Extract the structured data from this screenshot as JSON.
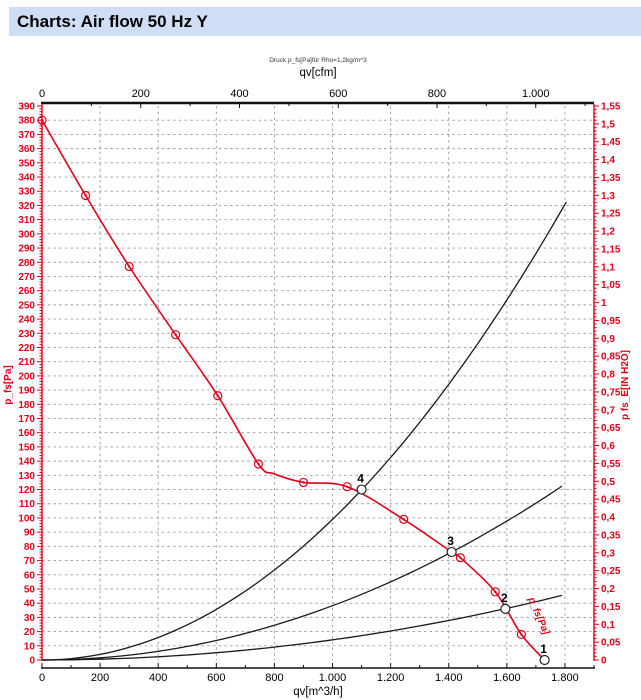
{
  "header": {
    "title": "Charts: Air flow 50 Hz Y"
  },
  "colors": {
    "title_bg": "#cfdef6",
    "accent_red": "#e1001a",
    "curve_black": "#1a1a1a",
    "grid_gray": "#9a9a9a",
    "axis_black": "#111111"
  },
  "chart_data": {
    "type": "line",
    "subtitle": "Druck p_fs[Pa]für Rho=1,2kg/m^3",
    "axes": {
      "top": {
        "label": "qv[cfm]",
        "max": 1118,
        "major_ticks": [
          0,
          200,
          400,
          600,
          800,
          1000
        ],
        "tick_labels": [
          "0",
          "200",
          "400",
          "600",
          "800",
          "1.000"
        ],
        "minor_step": 100
      },
      "bottom": {
        "label": "qv[m^3/h]",
        "max": 1900,
        "major_ticks": [
          0,
          200,
          400,
          600,
          800,
          1000,
          1200,
          1400,
          1600,
          1800
        ],
        "tick_labels": [
          "0",
          "200",
          "400",
          "600",
          "800",
          "1.000",
          "1.200",
          "1.400",
          "1.600",
          "1.800"
        ],
        "minor_step": 100
      },
      "left": {
        "label": "p_fs[Pa]",
        "max": 390,
        "major_step": 10,
        "minor_step": 2,
        "tick_labels": [
          "0",
          "10",
          "20",
          "30",
          "40",
          "50",
          "60",
          "70",
          "80",
          "90",
          "100",
          "110",
          "120",
          "130",
          "140",
          "150",
          "160",
          "170",
          "180",
          "190",
          "200",
          "210",
          "220",
          "230",
          "240",
          "250",
          "260",
          "270",
          "280",
          "290",
          "300",
          "310",
          "320",
          "330",
          "340",
          "350",
          "360",
          "370",
          "380",
          "390"
        ]
      },
      "right": {
        "label": "p fs_E[IN H2O]",
        "max": 1.55,
        "major_step": 0.05,
        "minor_step": 0.01,
        "tick_labels": [
          "0",
          "0,05",
          "0,1",
          "0,15",
          "0,2",
          "0,25",
          "0,3",
          "0,35",
          "0,4",
          "0,45",
          "0,5",
          "0,55",
          "0,6",
          "0,65",
          "0,7",
          "0,75",
          "0,8",
          "0,85",
          "0,9",
          "0,95",
          "1",
          "1,05",
          "1,1",
          "1,15",
          "1,2",
          "1,25",
          "1,3",
          "1,35",
          "1,4",
          "1,45",
          "1,5",
          "1,55"
        ]
      },
      "grid": {
        "horizontal_step_pa": 10,
        "vertical_step_m3h": 200
      }
    },
    "fan_curve": {
      "name": "p_fs[Pa]",
      "curve_label": "p_fs[Pa]",
      "points": [
        [
          0,
          380
        ],
        [
          150,
          327
        ],
        [
          300,
          277
        ],
        [
          460,
          229
        ],
        [
          605,
          186
        ],
        [
          745,
          138
        ],
        [
          800,
          131
        ],
        [
          900,
          125
        ],
        [
          1050,
          122
        ],
        [
          1245,
          99
        ],
        [
          1410,
          76
        ],
        [
          1440,
          72
        ],
        [
          1560,
          48
        ],
        [
          1650,
          18
        ],
        [
          1730,
          0
        ]
      ],
      "marker_points": [
        [
          0,
          380
        ],
        [
          150,
          327
        ],
        [
          300,
          277
        ],
        [
          460,
          229
        ],
        [
          605,
          186
        ],
        [
          745,
          138
        ],
        [
          900,
          125
        ],
        [
          1050,
          122
        ],
        [
          1245,
          99
        ],
        [
          1440,
          72
        ],
        [
          1560,
          48
        ],
        [
          1650,
          18
        ]
      ]
    },
    "system_curves": [
      {
        "name": "system-curve-through-4",
        "k": 9.9e-05,
        "q_end": 1800
      },
      {
        "name": "system-curve-through-3",
        "k": 3.82e-05,
        "q_end": 1790
      },
      {
        "name": "system-curve-through-2",
        "k": 1.42e-05,
        "q_end": 1790
      }
    ],
    "operating_points": [
      {
        "label": "1",
        "q": 1730,
        "p": 0
      },
      {
        "label": "2",
        "q": 1595,
        "p": 36
      },
      {
        "label": "3",
        "q": 1410,
        "p": 76
      },
      {
        "label": "4",
        "q": 1100,
        "p": 120
      }
    ]
  }
}
